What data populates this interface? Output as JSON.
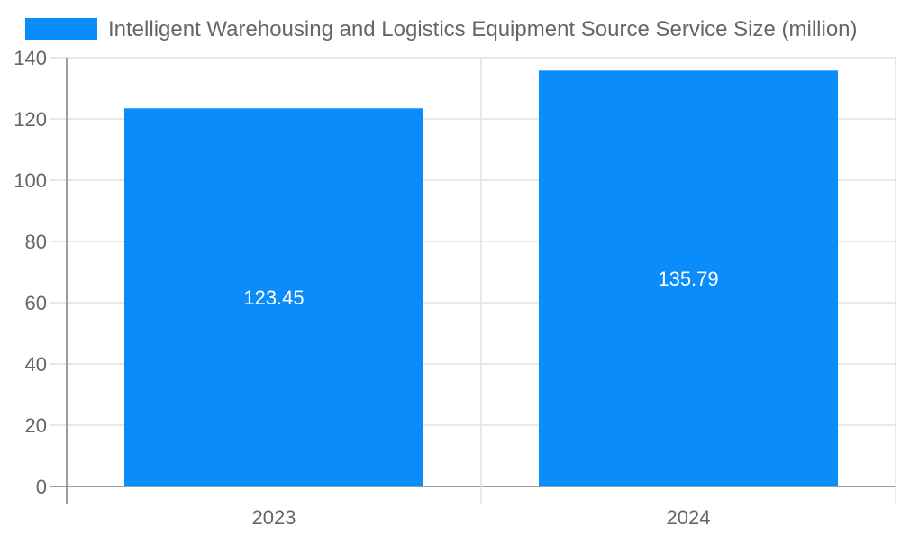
{
  "chart_data": {
    "type": "bar",
    "categories": [
      "2023",
      "2024"
    ],
    "series": [
      {
        "name": "Intelligent Warehousing and Logistics Equipment Source Service Size (million)",
        "values": [
          123.45,
          135.79
        ]
      }
    ],
    "ylim": [
      0,
      140
    ],
    "yticks": [
      0,
      20,
      40,
      60,
      80,
      100,
      120,
      140
    ],
    "grid": true,
    "legend": "top",
    "data_labels": [
      "123.45",
      "135.79"
    ],
    "colors": {
      "bar": "#0a8cfa",
      "grid": "#e0e0e0",
      "axis": "#9e9e9e",
      "text": "#666666",
      "label": "#ffffff"
    }
  }
}
